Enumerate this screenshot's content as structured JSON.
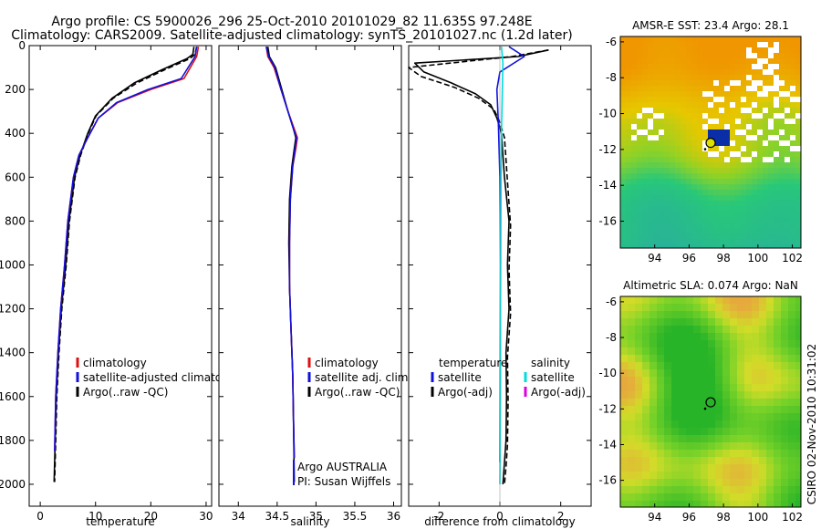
{
  "header": {
    "title_line1": "Argo profile: CS 5900026_296 25-Oct-2010 20101029_82 11.635S 97.248E",
    "title_line2": "Climatology: CARS2009. Satellite-adjusted climatology: synTS_20101027.nc (1.2d later)"
  },
  "credit": "CSIRO 02-Nov-2010 10:31:02",
  "colors": {
    "climatology": "#dd1111",
    "satellite": "#1111dd",
    "argo": "#000000",
    "sat_salinity": "#00dddd",
    "argo_adj_salinity": "#dd00dd"
  },
  "chart_data": [
    {
      "type": "line",
      "name": "temperature-profile",
      "xlabel": "temperature",
      "xlim": [
        -2,
        31
      ],
      "ylim": [
        2100,
        0
      ],
      "xticks": [
        0,
        10,
        20,
        30
      ],
      "yticks": [
        0,
        200,
        400,
        600,
        800,
        1000,
        1200,
        1400,
        1600,
        1800,
        2000
      ],
      "legend": [
        "climatology",
        "satellite-adjusted climatology",
        "Argo(..raw -QC)"
      ],
      "series": [
        {
          "name": "Argo raw",
          "color": "#000000",
          "dashed": false,
          "x": [
            27.8,
            27.6,
            26.5,
            22.0,
            17.0,
            13.0,
            10.0,
            8.6,
            7.2,
            6.2,
            5.2,
            4.6,
            3.8,
            3.3,
            2.9,
            2.7,
            2.5
          ],
          "depth": [
            5,
            40,
            60,
            110,
            170,
            240,
            320,
            400,
            500,
            600,
            800,
            1000,
            1200,
            1400,
            1600,
            1800,
            1990
          ]
        },
        {
          "name": "Argo raw (dashed)",
          "color": "#000000",
          "dashed": true,
          "x": [
            28.3,
            28.0,
            27.0,
            22.5,
            17.5,
            13.2,
            10.1,
            8.7,
            7.3,
            6.3,
            5.3,
            4.7,
            3.9,
            3.4,
            3.0,
            2.8,
            2.6
          ],
          "depth": [
            5,
            40,
            60,
            110,
            170,
            240,
            320,
            400,
            500,
            600,
            800,
            1000,
            1200,
            1400,
            1600,
            1800,
            1990
          ]
        },
        {
          "name": "climatology",
          "color": "#dd1111",
          "dashed": false,
          "x": [
            28.6,
            28.3,
            26.0,
            20.0,
            14.0,
            10.5,
            8.6,
            7.0,
            6.0,
            5.0,
            4.4,
            3.7,
            3.2,
            2.8,
            2.6
          ],
          "depth": [
            5,
            50,
            150,
            200,
            260,
            330,
            420,
            500,
            600,
            800,
            1000,
            1200,
            1400,
            1600,
            1850
          ]
        },
        {
          "name": "satellite-adjusted climatology",
          "color": "#1111dd",
          "dashed": false,
          "x": [
            28.3,
            28.0,
            25.5,
            19.5,
            13.8,
            10.5,
            8.6,
            7.0,
            6.0,
            5.0,
            4.4,
            3.7,
            3.2,
            2.8,
            2.6
          ],
          "depth": [
            5,
            50,
            150,
            200,
            260,
            330,
            420,
            500,
            600,
            800,
            1000,
            1200,
            1400,
            1600,
            1850
          ]
        }
      ]
    },
    {
      "type": "line",
      "name": "salinity-profile",
      "xlabel": "salinity",
      "xlim": [
        33.75,
        36.1
      ],
      "ylim": [
        2100,
        0
      ],
      "xticks": [
        34,
        34.5,
        35,
        35.5,
        36
      ],
      "legend": [
        "climatology",
        "satellite adj. clim.",
        "Argo(..raw -QC)"
      ],
      "annotations": [
        "Argo AUSTRALIA",
        "PI: Susan Wijffels"
      ],
      "series": [
        {
          "name": "Argo raw",
          "color": "#000000",
          "dashed": false,
          "x": [
            34.38,
            34.4,
            34.48,
            34.56,
            34.64,
            34.71,
            34.74,
            34.72,
            34.69,
            34.66,
            34.65,
            34.66,
            34.68,
            34.7,
            34.71,
            34.72
          ],
          "depth": [
            5,
            50,
            100,
            200,
            300,
            380,
            420,
            470,
            550,
            700,
            900,
            1100,
            1300,
            1500,
            1700,
            1990
          ]
        },
        {
          "name": "climatology",
          "color": "#dd1111",
          "dashed": false,
          "x": [
            34.36,
            34.38,
            34.46,
            34.55,
            34.64,
            34.72,
            34.76,
            34.74,
            34.7,
            34.67,
            34.66,
            34.66,
            34.68,
            34.7,
            34.71,
            34.72
          ],
          "depth": [
            5,
            50,
            100,
            200,
            300,
            380,
            420,
            470,
            550,
            700,
            900,
            1100,
            1300,
            1500,
            1700,
            1880
          ]
        },
        {
          "name": "satellite adj. clim.",
          "color": "#1111dd",
          "dashed": false,
          "x": [
            34.36,
            34.39,
            34.47,
            34.55,
            34.64,
            34.71,
            34.75,
            34.73,
            34.7,
            34.67,
            34.66,
            34.66,
            34.68,
            34.7,
            34.71,
            34.72
          ],
          "depth": [
            5,
            50,
            100,
            200,
            300,
            380,
            420,
            470,
            550,
            700,
            900,
            1100,
            1300,
            1500,
            1700,
            1880
          ]
        }
      ]
    },
    {
      "type": "line",
      "name": "difference-profile",
      "xlabel": "difference from climatology",
      "xlim": [
        -3,
        3
      ],
      "ylim": [
        2100,
        0
      ],
      "xticks": [
        -2,
        0,
        2
      ],
      "legend_left": [
        "temperature",
        "satellite",
        "Argo(-adj)"
      ],
      "legend_right": [
        "salinity",
        "satellite",
        "Argo(-adj)"
      ],
      "series": [
        {
          "name": "temperature Argo(-adj)",
          "color": "#000000",
          "dashed": false,
          "x": [
            1.6,
            0.6,
            -2.8,
            -2.5,
            -1.6,
            -0.8,
            -0.3,
            -0.1,
            0.05,
            0.1,
            0.15,
            0.3,
            0.25,
            0.3,
            0.2,
            0.22,
            0.2,
            0.15,
            0.1
          ],
          "depth": [
            20,
            50,
            80,
            120,
            170,
            220,
            270,
            330,
            400,
            500,
            600,
            800,
            1000,
            1200,
            1400,
            1600,
            1800,
            1900,
            2000
          ]
        },
        {
          "name": "temperature Argo(-adj) dashed",
          "color": "#000000",
          "dashed": true,
          "x": [
            1.6,
            0.4,
            -3.0,
            -2.6,
            -1.5,
            -0.7,
            -0.2,
            0.0,
            0.15,
            0.2,
            0.25,
            0.35,
            0.3,
            0.35,
            0.25,
            0.27,
            0.25,
            0.2,
            0.15
          ],
          "depth": [
            20,
            50,
            100,
            140,
            190,
            240,
            290,
            350,
            420,
            520,
            620,
            820,
            1020,
            1220,
            1420,
            1620,
            1820,
            1920,
            2000
          ]
        },
        {
          "name": "temperature satellite",
          "color": "#1111dd",
          "dashed": false,
          "x": [
            0.3,
            0.8,
            0.0,
            -0.1,
            -0.05,
            0.0,
            0.02,
            0.0
          ],
          "depth": [
            5,
            50,
            120,
            200,
            350,
            600,
            1000,
            1900
          ]
        },
        {
          "name": "salinity satellite",
          "color": "#00dddd",
          "dashed": false,
          "x": [
            0.05,
            0.1,
            0.08,
            0.05,
            0.04,
            0.03,
            0.02,
            0.02,
            0.01,
            0.0
          ],
          "depth": [
            5,
            80,
            200,
            400,
            600,
            900,
            1200,
            1500,
            1800,
            2000
          ]
        }
      ]
    },
    {
      "type": "heatmap",
      "name": "sst-map",
      "title": "AMSR-E SST: 23.4 Argo: 28.1",
      "xlim": [
        92,
        102.5
      ],
      "ylim": [
        -17.5,
        -5.7
      ],
      "xticks": [
        94,
        96,
        98,
        100,
        102
      ],
      "yticks": [
        -6,
        -8,
        -10,
        -12,
        -14,
        -16
      ],
      "float_position": [
        97.25,
        -11.63
      ]
    },
    {
      "type": "heatmap",
      "name": "sla-map",
      "title": "Altimetric SLA: 0.074 Argo: NaN",
      "xlim": [
        92,
        102.5
      ],
      "ylim": [
        -17.5,
        -5.7
      ],
      "xticks": [
        94,
        96,
        98,
        100,
        102
      ],
      "yticks": [
        -6,
        -8,
        -10,
        -12,
        -14,
        -16
      ],
      "float_position": [
        97.25,
        -11.63
      ]
    }
  ]
}
